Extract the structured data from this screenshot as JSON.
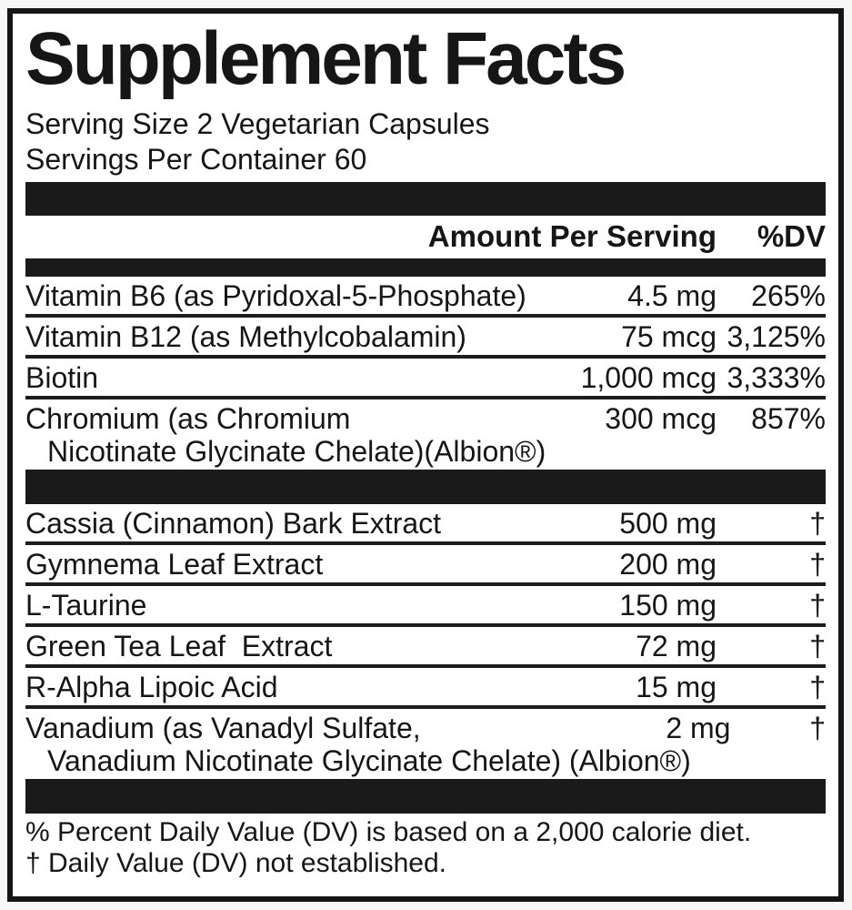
{
  "colors": {
    "ink": "#161616",
    "paper": "#ffffff",
    "bar": "#1a1a1a"
  },
  "label": {
    "title": "Supplement Facts",
    "serving_size": "Serving Size 2 Vegetarian Capsules",
    "servings_per_container": "Servings Per Container 60",
    "columns": {
      "amount": "Amount Per Serving",
      "dv": "%DV"
    },
    "nutrients": [
      {
        "name": "Vitamin B6 (as Pyridoxal-5-Phosphate)",
        "amount": "4.5 mg",
        "dv": "265%"
      },
      {
        "name": "Vitamin B12 (as Methylcobalamin)",
        "amount": "75 mcg",
        "dv": "3,125%"
      },
      {
        "name": "Biotin",
        "amount": "1,000 mcg",
        "dv": "3,333%"
      },
      {
        "name": "Chromium (as Chromium",
        "name_line2": "Nicotinate Glycinate Chelate)(Albion®)",
        "amount": "300 mcg",
        "dv": "857%"
      }
    ],
    "botanicals": [
      {
        "name": "Cassia (Cinnamon) Bark Extract",
        "amount": "500 mg",
        "dv": "†"
      },
      {
        "name": "Gymnema Leaf Extract",
        "amount": "200 mg",
        "dv": "†"
      },
      {
        "name": "L-Taurine",
        "amount": "150 mg",
        "dv": "†"
      },
      {
        "name": "Green Tea Leaf  Extract",
        "amount": "72 mg",
        "dv": "†"
      },
      {
        "name": "R-Alpha Lipoic Acid",
        "amount": "15 mg",
        "dv": "†"
      },
      {
        "name": "Vanadium (as Vanadyl Sulfate,",
        "name_line2": "Vanadium Nicotinate Glycinate Chelate) (Albion®)",
        "amount": "2 mg",
        "dv": "†"
      }
    ],
    "footnotes": {
      "percent_dv": "% Percent Daily Value (DV) is based on a 2,000 calorie diet.",
      "dagger": "† Daily Value (DV) not established."
    }
  }
}
